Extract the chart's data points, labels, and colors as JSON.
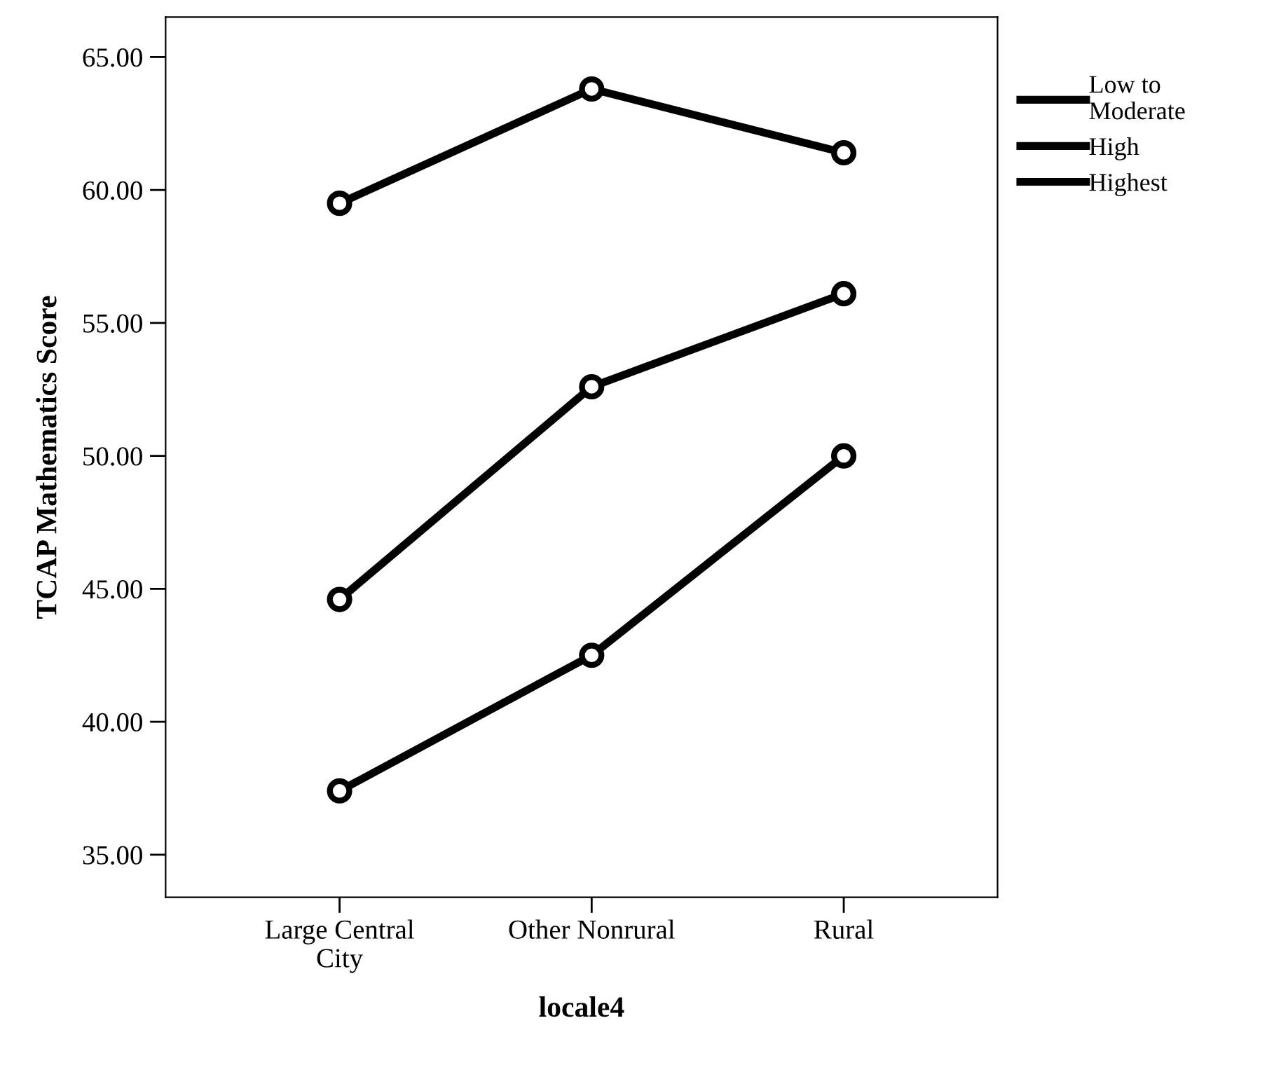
{
  "chart_data": {
    "type": "line",
    "xlabel": "locale4",
    "ylabel": "TCAP Mathematics Score",
    "categories": [
      "Large Central\nCity",
      "Other Nonrural",
      "Rural"
    ],
    "series": [
      {
        "name": "Low to\nModerate",
        "color": "#000000",
        "values": [
          37.4,
          42.5,
          50.0
        ]
      },
      {
        "name": "High",
        "color": "#000000",
        "values": [
          44.6,
          52.6,
          56.1
        ]
      },
      {
        "name": "Highest",
        "color": "#000000",
        "values": [
          59.5,
          63.8,
          61.4
        ]
      }
    ],
    "ylim": [
      33.4,
      66.5
    ],
    "yticks": [
      {
        "value": 35,
        "label": "35.00"
      },
      {
        "value": 40,
        "label": "40.00"
      },
      {
        "value": 45,
        "label": "45.00"
      },
      {
        "value": 50,
        "label": "50.00"
      },
      {
        "value": 55,
        "label": "55.00"
      },
      {
        "value": 60,
        "label": "60.00"
      },
      {
        "value": 65,
        "label": "65.00"
      }
    ],
    "marker": "circle",
    "line_style": "solid",
    "grid": false,
    "legend": "right"
  }
}
